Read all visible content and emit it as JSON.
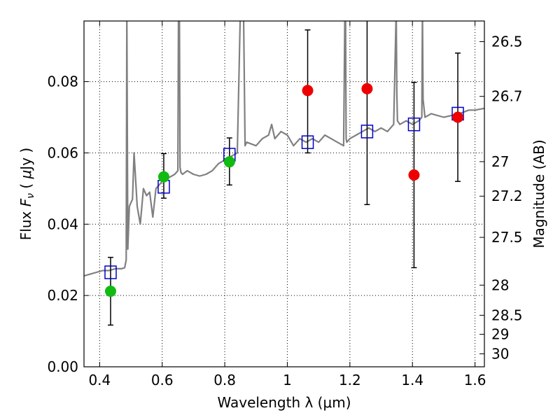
{
  "chart_data": {
    "type": "scatter",
    "xlabel": "Wavelength  λ (μm)",
    "ylabel_parts": [
      "Flux  ",
      "F",
      "ν",
      "  ( ",
      "μ",
      "Jy )"
    ],
    "y2label": "Magnitude (AB)",
    "xlim": [
      0.35,
      1.63
    ],
    "ylim": [
      0.0,
      0.097
    ],
    "x_ticks": [
      0.4,
      0.6,
      0.8,
      1.0,
      1.2,
      1.4,
      1.6
    ],
    "x_tick_labels": [
      "0.4",
      "0.6",
      "0.8",
      "1",
      "1.2",
      "1.4",
      "1.6"
    ],
    "y_ticks": [
      0.0,
      0.02,
      0.04,
      0.06,
      0.08
    ],
    "y_tick_labels": [
      "0.00",
      "0.02",
      "0.04",
      "0.06",
      "0.08"
    ],
    "y2_ticks": [
      26.5,
      26.7,
      27,
      27.2,
      27.5,
      28,
      28.5,
      29,
      30
    ],
    "y2_tick_labels": [
      "26.5",
      "26.7",
      "27",
      "27.2",
      "27.5",
      "28",
      "28.5",
      "29",
      "30"
    ],
    "grid": true,
    "colors": {
      "model": "#808080",
      "model_photometry": "#0000cc",
      "obs_green": "#11bb11",
      "obs_red": "#ee0000",
      "errorbar": "#000000"
    },
    "series": [
      {
        "role": "model_spectrum",
        "x": [
          0.35,
          0.37,
          0.39,
          0.41,
          0.43,
          0.45,
          0.47,
          0.48,
          0.485,
          0.487,
          0.49,
          0.495,
          0.5,
          0.505,
          0.51,
          0.52,
          0.53,
          0.54,
          0.55,
          0.56,
          0.57,
          0.58,
          0.59,
          0.6,
          0.62,
          0.64,
          0.65,
          0.652,
          0.655,
          0.657,
          0.66,
          0.665,
          0.68,
          0.7,
          0.72,
          0.74,
          0.76,
          0.78,
          0.8,
          0.82,
          0.84,
          0.85,
          0.855,
          0.86,
          0.865,
          0.87,
          0.9,
          0.92,
          0.94,
          0.95,
          0.96,
          0.98,
          1.0,
          1.02,
          1.04,
          1.06,
          1.08,
          1.1,
          1.12,
          1.14,
          1.16,
          1.18,
          1.184,
          1.186,
          1.188,
          1.19,
          1.2,
          1.22,
          1.24,
          1.26,
          1.28,
          1.3,
          1.32,
          1.34,
          1.348,
          1.35,
          1.352,
          1.36,
          1.38,
          1.4,
          1.42,
          1.43,
          1.432,
          1.434,
          1.44,
          1.46,
          1.5,
          1.55,
          1.58,
          1.6,
          1.63
        ],
        "y": [
          0.0255,
          0.026,
          0.0265,
          0.027,
          0.027,
          0.0275,
          0.0275,
          0.0278,
          0.03,
          0.1,
          0.033,
          0.045,
          0.046,
          0.047,
          0.06,
          0.045,
          0.04,
          0.05,
          0.048,
          0.049,
          0.042,
          0.05,
          0.051,
          0.052,
          0.053,
          0.054,
          0.055,
          0.1,
          0.1,
          0.056,
          0.0545,
          0.054,
          0.055,
          0.054,
          0.0535,
          0.054,
          0.055,
          0.057,
          0.058,
          0.059,
          0.06,
          0.1,
          0.1,
          0.1,
          0.062,
          0.063,
          0.062,
          0.064,
          0.065,
          0.068,
          0.064,
          0.066,
          0.065,
          0.062,
          0.064,
          0.063,
          0.064,
          0.063,
          0.065,
          0.064,
          0.063,
          0.062,
          0.1,
          0.1,
          0.064,
          0.063,
          0.064,
          0.065,
          0.066,
          0.067,
          0.066,
          0.067,
          0.066,
          0.068,
          0.1,
          0.077,
          0.069,
          0.068,
          0.069,
          0.068,
          0.069,
          0.07,
          0.1,
          0.075,
          0.07,
          0.071,
          0.07,
          0.071,
          0.072,
          0.072,
          0.0725
        ]
      },
      {
        "role": "model_photometry",
        "marker": "open-square",
        "x": [
          0.435,
          0.605,
          0.815,
          1.065,
          1.255,
          1.405,
          1.545
        ],
        "y": [
          0.0265,
          0.0505,
          0.0595,
          0.063,
          0.066,
          0.068,
          0.071
        ]
      },
      {
        "role": "observed_green",
        "marker": "filled-circle",
        "x": [
          0.435,
          0.605,
          0.815
        ],
        "y": [
          0.0212,
          0.0533,
          0.0575
        ],
        "yerr_low": [
          0.0095,
          0.006,
          0.0065
        ],
        "yerr_high": [
          0.0095,
          0.0065,
          0.0067
        ]
      },
      {
        "role": "observed_red",
        "marker": "filled-circle",
        "x": [
          1.065,
          1.255,
          1.405,
          1.545
        ],
        "y": [
          0.0775,
          0.078,
          0.0538,
          0.07
        ],
        "yerr_low": [
          0.0175,
          0.0325,
          0.026,
          0.018
        ],
        "yerr_high": [
          0.017,
          0.0215,
          0.026,
          0.018
        ]
      }
    ]
  }
}
